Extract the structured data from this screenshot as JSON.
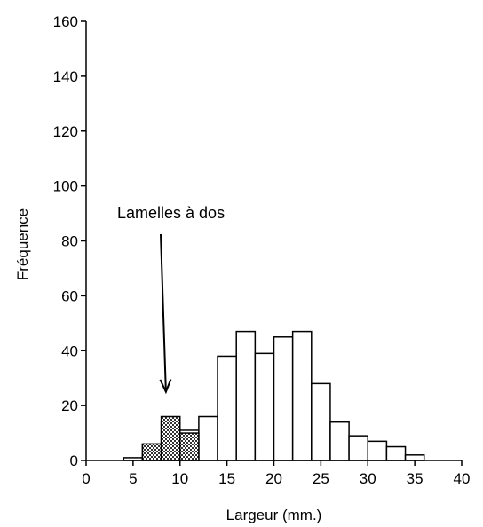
{
  "chart_data": {
    "type": "bar",
    "xlabel": "Largeur (mm.)",
    "ylabel": "Fréquence",
    "xlim": [
      0,
      40
    ],
    "ylim": [
      0,
      160
    ],
    "xticks": [
      0,
      5,
      10,
      15,
      20,
      25,
      30,
      35,
      40
    ],
    "yticks": [
      0,
      20,
      40,
      60,
      80,
      100,
      120,
      140,
      160
    ],
    "grid": false,
    "bin_width": 2,
    "series": [
      {
        "x": [
          5,
          7,
          9,
          11,
          13,
          15,
          17,
          19,
          21,
          23,
          25,
          27,
          29,
          31,
          33,
          35
        ],
        "values": [
          1,
          6,
          14,
          11,
          16,
          38,
          47,
          39,
          45,
          47,
          28,
          14,
          9,
          7,
          5,
          2
        ]
      },
      {
        "x": [
          7,
          9,
          11
        ],
        "values": [
          6,
          16,
          10
        ],
        "pattern": "crosshatch"
      }
    ],
    "annotations": [
      {
        "text": "Lamelles à dos",
        "arrow_to_x": 8.5,
        "arrow_to_y": 25
      }
    ],
    "colors": {
      "open_bar": "#ffffff",
      "outline": "#000000",
      "hatched_bar": "#555555"
    }
  }
}
